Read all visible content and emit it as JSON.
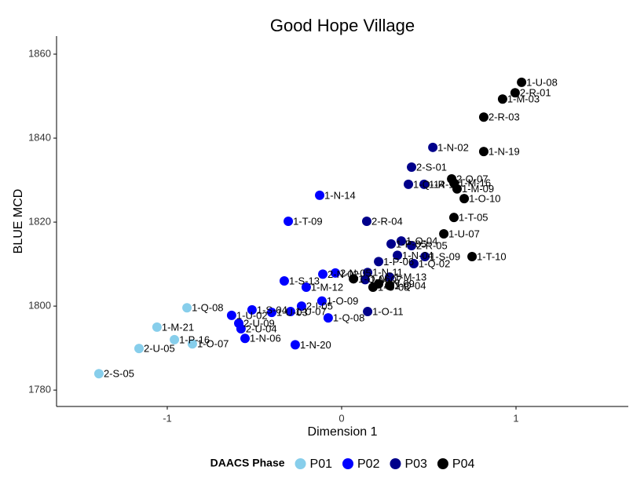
{
  "chart_data": {
    "type": "scatter",
    "title": "Good Hope Village",
    "x_label": "Dimension 1",
    "y_label": "BLUE MCD",
    "legend_title": "DAACS Phase",
    "legend_position": "bottom",
    "xlim": [
      -1.635,
      1.644
    ],
    "ylim": [
      1776.1,
      1864.3
    ],
    "xticks": [
      -1,
      0,
      1
    ],
    "yticks": [
      1780,
      1800,
      1820,
      1840,
      1860
    ],
    "grid": false,
    "series": [
      {
        "name": "P01",
        "color": "#87ceeb",
        "x": [
          -1.392,
          -1.162,
          -1.059,
          -0.959,
          -0.856,
          -0.887
        ],
        "y": [
          1783.9,
          1789.9,
          1795.0,
          1792.0,
          1791.0,
          1799.6
        ],
        "labels": [
          "2-S-05",
          "2-U-05",
          "1-M-21",
          "1-P-16",
          "1-O-07",
          "1-Q-08"
        ]
      },
      {
        "name": "P02",
        "color": "#0000ff",
        "x": [
          -0.126,
          -0.306,
          -0.266,
          -0.554,
          -0.577,
          -0.59,
          -0.631,
          -0.329,
          -0.203,
          -0.514,
          -0.401,
          -0.293,
          -0.23,
          -0.113,
          -0.077,
          -0.036,
          -0.108
        ],
        "y": [
          1826.4,
          1820.2,
          1790.8,
          1792.3,
          1794.6,
          1795.9,
          1797.8,
          1806.0,
          1804.5,
          1799.1,
          1798.5,
          1798.7,
          1800.0,
          1801.2,
          1797.2,
          1807.9,
          1807.6
        ],
        "labels": [
          "1-N-14",
          "1-T-09",
          "1-N-20",
          "1-N-06",
          "2-U-04",
          "2-U-09",
          "1-U-02",
          "1-S-13",
          "1-M-12",
          "1-S-04",
          "1-U-03",
          "1-U-07",
          "2-I-05",
          "1-O-09",
          "1-Q-08",
          "2-N-05",
          "2-N-02"
        ]
      },
      {
        "name": "P03",
        "color": "#00008b",
        "x": [
          0.523,
          0.401,
          0.383,
          0.473,
          0.144,
          0.342,
          0.284,
          0.401,
          0.32,
          0.478,
          0.414,
          0.149,
          0.275,
          0.135,
          0.149,
          0.212
        ],
        "y": [
          1837.8,
          1833.1,
          1829.0,
          1829.0,
          1820.2,
          1815.5,
          1814.8,
          1814.4,
          1812.1,
          1811.8,
          1810.1,
          1808.0,
          1806.9,
          1806.3,
          1798.7,
          1810.6
        ],
        "labels": [
          "1-N-02",
          "2-S-01",
          "1-Q-14",
          "1-R-13",
          "2-R-04",
          "1-O-04",
          "1-P-05",
          "2-R-05",
          "1-N-04",
          "1-S-09",
          "1-Q-02",
          "1-N-11",
          "1-M-13",
          "1-M-07",
          "1-O-11",
          "1-P-06"
        ]
      },
      {
        "name": "P04",
        "color": "#000000",
        "x": [
          1.032,
          0.995,
          0.923,
          0.815,
          0.815,
          0.631,
          0.644,
          0.662,
          0.703,
          0.644,
          0.586,
          0.748,
          0.068,
          0.18,
          0.275,
          0.212
        ],
        "y": [
          1853.3,
          1850.8,
          1849.3,
          1845.0,
          1836.8,
          1830.3,
          1829.3,
          1827.9,
          1825.6,
          1821.1,
          1817.2,
          1811.8,
          1806.5,
          1804.5,
          1804.9,
          1805.3
        ],
        "labels": [
          "1-U-08",
          "2-R-01",
          "1-M-03",
          "2-R-03",
          "1-N-19",
          "2-Q-07",
          "1-M-16",
          "1-M-09",
          "1-O-10",
          "1-T-05",
          "1-U-07",
          "1-T-10",
          "1-Q-06",
          "1-O-08",
          "1-Q-04",
          "1-N-09"
        ]
      }
    ]
  }
}
